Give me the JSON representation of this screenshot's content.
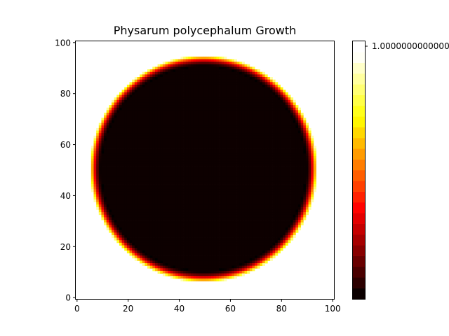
{
  "chart_data": {
    "type": "heatmap",
    "title": "Physarum polycephalum Growth",
    "xlabel": "",
    "ylabel": "",
    "colormap": "hot",
    "grid": false,
    "interior_color": "#0d0000",
    "image_shape": [
      101,
      101
    ],
    "circle": {
      "center_x": 49.5,
      "center_y": 49.5,
      "radius": 44.5,
      "edge_width": 4.5
    },
    "xlim": [
      -0.5,
      100.5
    ],
    "ylim": [
      100.5,
      -0.5
    ],
    "xticks": [
      0,
      20,
      40,
      60,
      80,
      100
    ],
    "xtick_labels": [
      "0",
      "20",
      "40",
      "60",
      "80",
      "100"
    ],
    "yticks": [
      0,
      20,
      40,
      60,
      80,
      100
    ],
    "ytick_labels": [
      "0",
      "20",
      "40",
      "60",
      "80",
      "100"
    ],
    "colorbar": {
      "levels": 24,
      "tick_label": "1.0000000000000",
      "colors": [
        "#0b0000",
        "#2c0000",
        "#4a0000",
        "#690000",
        "#880000",
        "#a60000",
        "#c50000",
        "#e30000",
        "#ff0300",
        "#ff2100",
        "#ff4000",
        "#ff5e00",
        "#ff7d00",
        "#ff9b00",
        "#ffba00",
        "#ffd800",
        "#fff600",
        "#ffff1a",
        "#ffff46",
        "#ffff72",
        "#ffff9e",
        "#ffffc9",
        "#fffff5",
        "#ffffff"
      ]
    }
  }
}
